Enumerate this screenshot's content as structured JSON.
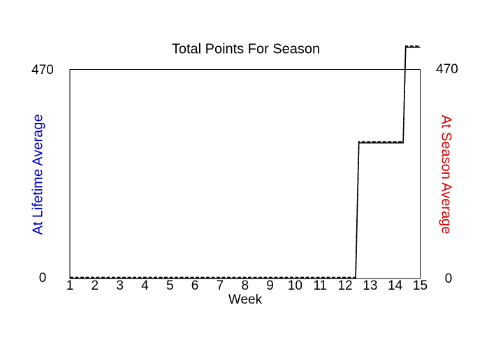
{
  "title": "Total Points For Season",
  "chart_data": {
    "type": "line",
    "title": "Total Points For Season",
    "xlabel": "Week",
    "x_ticks": [
      1,
      2,
      3,
      4,
      5,
      6,
      7,
      8,
      9,
      10,
      11,
      12,
      13,
      14,
      15
    ],
    "xlim": [
      1,
      15
    ],
    "grid": false,
    "legend": "none",
    "background": "#ffffff",
    "frame_color": "#000000",
    "left_axis": {
      "label": "At Lifetime Average",
      "color": "#0000CC",
      "range": [
        0,
        470
      ],
      "shown_ticks": [
        0,
        470
      ]
    },
    "right_axis": {
      "label": "At Season Average",
      "color": "#D40000",
      "range": [
        0,
        470
      ],
      "shown_ticks": [
        0,
        470
      ]
    },
    "series": [
      {
        "name": "At Lifetime Average",
        "line_style": "solid",
        "color": "#000000",
        "points": [
          [
            1,
            0
          ],
          [
            12.42,
            0
          ],
          [
            12.55,
            305
          ],
          [
            14.32,
            305
          ],
          [
            14.42,
            520
          ],
          [
            15,
            520
          ]
        ]
      },
      {
        "name": "At Season Average",
        "line_style": "dashed",
        "color": "#000000",
        "points": [
          [
            1,
            0
          ],
          [
            12.42,
            0
          ],
          [
            12.55,
            305
          ],
          [
            14.32,
            305
          ],
          [
            14.42,
            520
          ],
          [
            15,
            520
          ]
        ]
      }
    ],
    "annotation": "Final segment rises above the 470 axis maximum, extending past the top of the plot frame"
  }
}
